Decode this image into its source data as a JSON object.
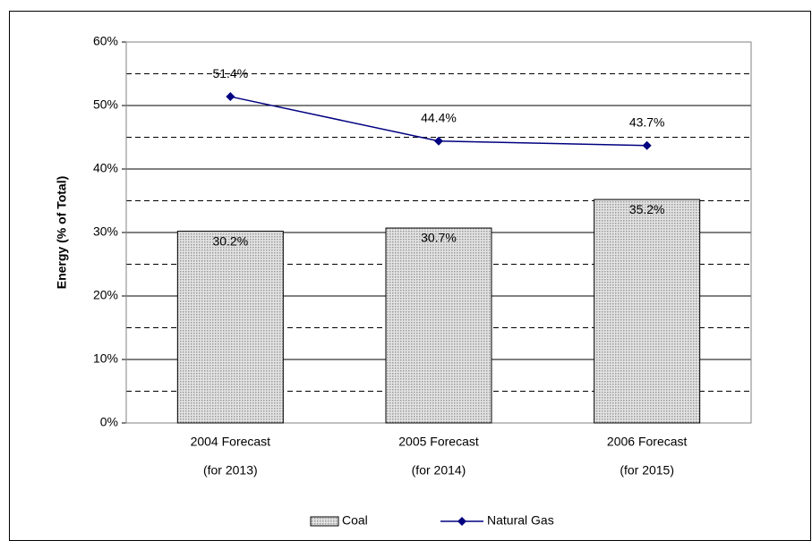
{
  "chart_data": {
    "type": "combo",
    "y_label": "Energy (% of Total)",
    "categories": [
      [
        "2004 Forecast",
        "(for 2013)"
      ],
      [
        "2005 Forecast",
        "(for 2014)"
      ],
      [
        "2006 Forecast",
        "(for 2015)"
      ]
    ],
    "series": [
      {
        "name": "Coal",
        "type": "bar",
        "color": "#c0c0c0",
        "values": [
          30.2,
          30.7,
          35.2
        ],
        "value_labels": [
          "30.2%",
          "30.7%",
          "35.2%"
        ]
      },
      {
        "name": "Natural Gas",
        "type": "line",
        "color": "#000080",
        "values": [
          51.4,
          44.4,
          43.7
        ],
        "value_labels": [
          "51.4%",
          "44.4%",
          "43.7%"
        ]
      }
    ],
    "ylim": [
      0,
      60
    ],
    "yticks": [
      {
        "value": 0,
        "label": "0%"
      },
      {
        "value": 10,
        "label": "10%"
      },
      {
        "value": 20,
        "label": "20%"
      },
      {
        "value": 30,
        "label": "30%"
      },
      {
        "value": 40,
        "label": "40%"
      },
      {
        "value": 50,
        "label": "50%"
      },
      {
        "value": 60,
        "label": "60%"
      }
    ],
    "minor_yticks": [
      5,
      15,
      25,
      35,
      45,
      55
    ],
    "grid": true,
    "legend": "bottom"
  }
}
